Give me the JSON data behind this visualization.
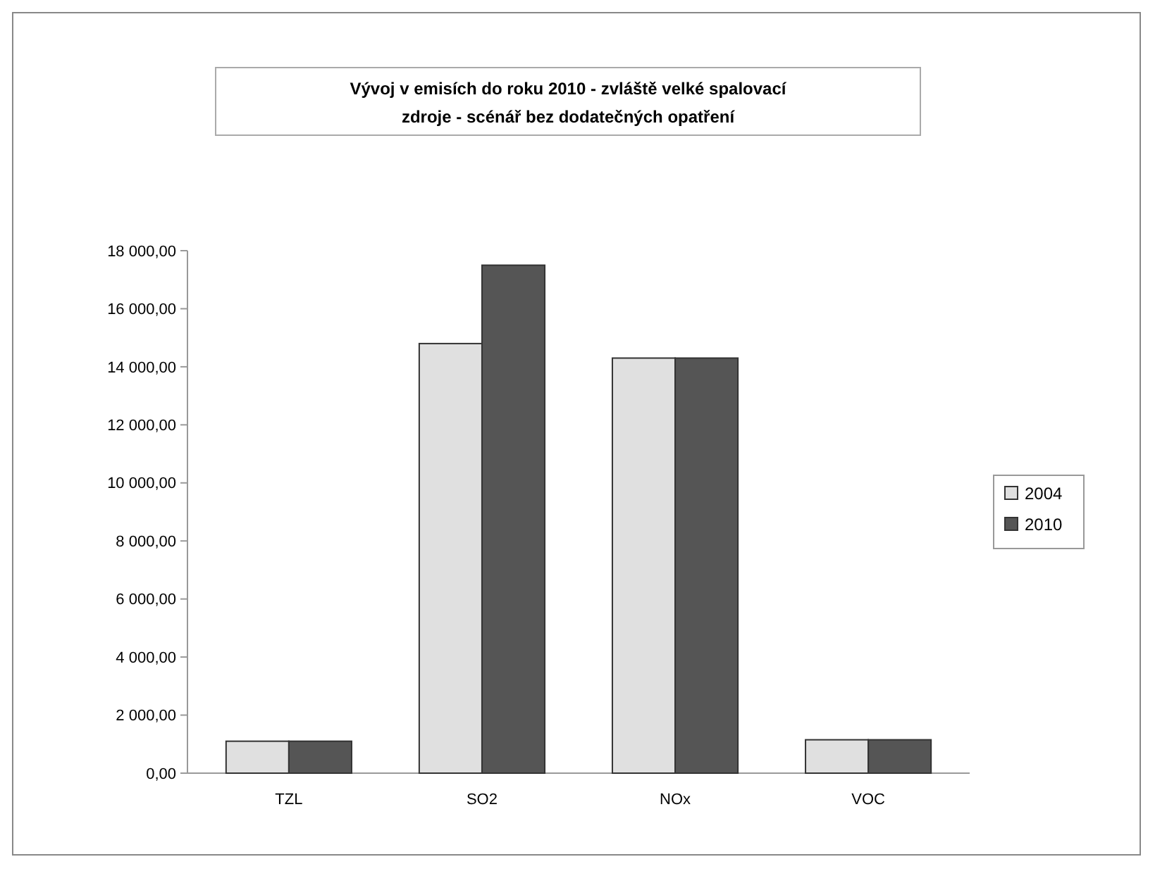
{
  "chart_data": {
    "type": "bar",
    "title": "Vývoj v emisích do roku 2010 - zvláště velké spalovací zdroje - scénář bez dodatečných opatření",
    "categories": [
      "TZL",
      "SO2",
      "NOx",
      "VOC"
    ],
    "series": [
      {
        "name": "2004",
        "color": "#e0e0e0",
        "values": [
          1100,
          14800,
          14300,
          1150
        ]
      },
      {
        "name": "2010",
        "color": "#555555",
        "values": [
          1100,
          17500,
          14300,
          1150
        ]
      }
    ],
    "ylim": [
      0,
      18000
    ],
    "yticks": [
      {
        "value": 0,
        "label": "0,00"
      },
      {
        "value": 2000,
        "label": "2 000,00"
      },
      {
        "value": 4000,
        "label": "4 000,00"
      },
      {
        "value": 6000,
        "label": "6 000,00"
      },
      {
        "value": 8000,
        "label": "8 000,00"
      },
      {
        "value": 10000,
        "label": "10 000,00"
      },
      {
        "value": 12000,
        "label": "12 000,00"
      },
      {
        "value": 14000,
        "label": "14 000,00"
      },
      {
        "value": 16000,
        "label": "16 000,00"
      },
      {
        "value": 18000,
        "label": "18 000,00"
      }
    ],
    "legend": "right"
  }
}
